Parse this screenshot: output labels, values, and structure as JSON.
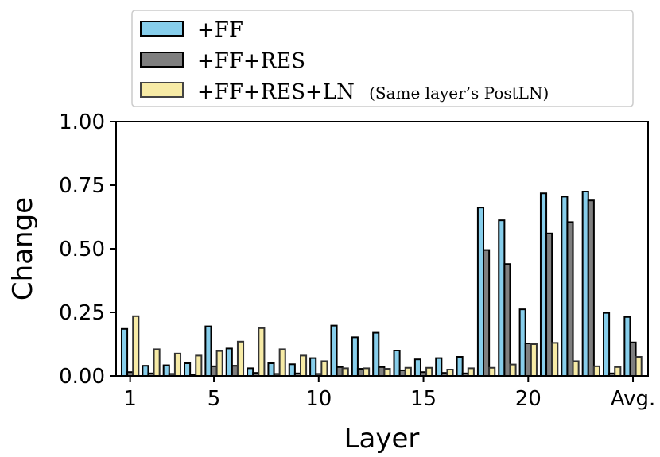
{
  "chart_data": {
    "type": "bar",
    "xlabel": "Layer",
    "ylabel": "Change",
    "ylim": [
      0,
      1
    ],
    "yticks": [
      "0.00",
      "0.25",
      "0.50",
      "0.75",
      "1.00"
    ],
    "xticks": [
      {
        "at": 1,
        "label": "1"
      },
      {
        "at": 5,
        "label": "5"
      },
      {
        "at": 10,
        "label": "10"
      },
      {
        "at": 15,
        "label": "15"
      },
      {
        "at": 20,
        "label": "20"
      },
      {
        "at": 25,
        "label": "Avg."
      }
    ],
    "categories": [
      "1",
      "2",
      "3",
      "4",
      "5",
      "6",
      "7",
      "8",
      "9",
      "10",
      "11",
      "12",
      "13",
      "14",
      "15",
      "16",
      "17",
      "18",
      "19",
      "20",
      "21",
      "22",
      "23",
      "24",
      "Avg."
    ],
    "legend_position": "top",
    "grid": false,
    "series": [
      {
        "name": "+FF",
        "color": "#87CEEB",
        "values": [
          0.185,
          0.04,
          0.042,
          0.05,
          0.195,
          0.108,
          0.03,
          0.05,
          0.046,
          0.07,
          0.198,
          0.152,
          0.17,
          0.1,
          0.065,
          0.07,
          0.075,
          0.662,
          0.612,
          0.262,
          0.718,
          0.705,
          0.725,
          0.248,
          0.232
        ]
      },
      {
        "name": "+FF+RES",
        "color": "#7f7f7f",
        "values": [
          0.015,
          0.01,
          0.008,
          0.006,
          0.038,
          0.04,
          0.012,
          0.008,
          0.01,
          0.008,
          0.035,
          0.028,
          0.035,
          0.022,
          0.015,
          0.012,
          0.01,
          0.495,
          0.44,
          0.128,
          0.56,
          0.605,
          0.69,
          0.01,
          0.132
        ]
      },
      {
        "name": "+FF+RES+LN",
        "color": "#f7eba6",
        "values": [
          0.235,
          0.105,
          0.088,
          0.08,
          0.098,
          0.135,
          0.188,
          0.105,
          0.08,
          0.058,
          0.03,
          0.03,
          0.028,
          0.032,
          0.032,
          0.025,
          0.03,
          0.032,
          0.045,
          0.125,
          0.13,
          0.058,
          0.038,
          0.035,
          0.075
        ]
      }
    ]
  },
  "legend": {
    "items": [
      {
        "label": "+FF"
      },
      {
        "label": "+FF+RES"
      },
      {
        "label": "+FF+RES+LN",
        "note": "(Same layer’s PostLN)"
      }
    ]
  }
}
